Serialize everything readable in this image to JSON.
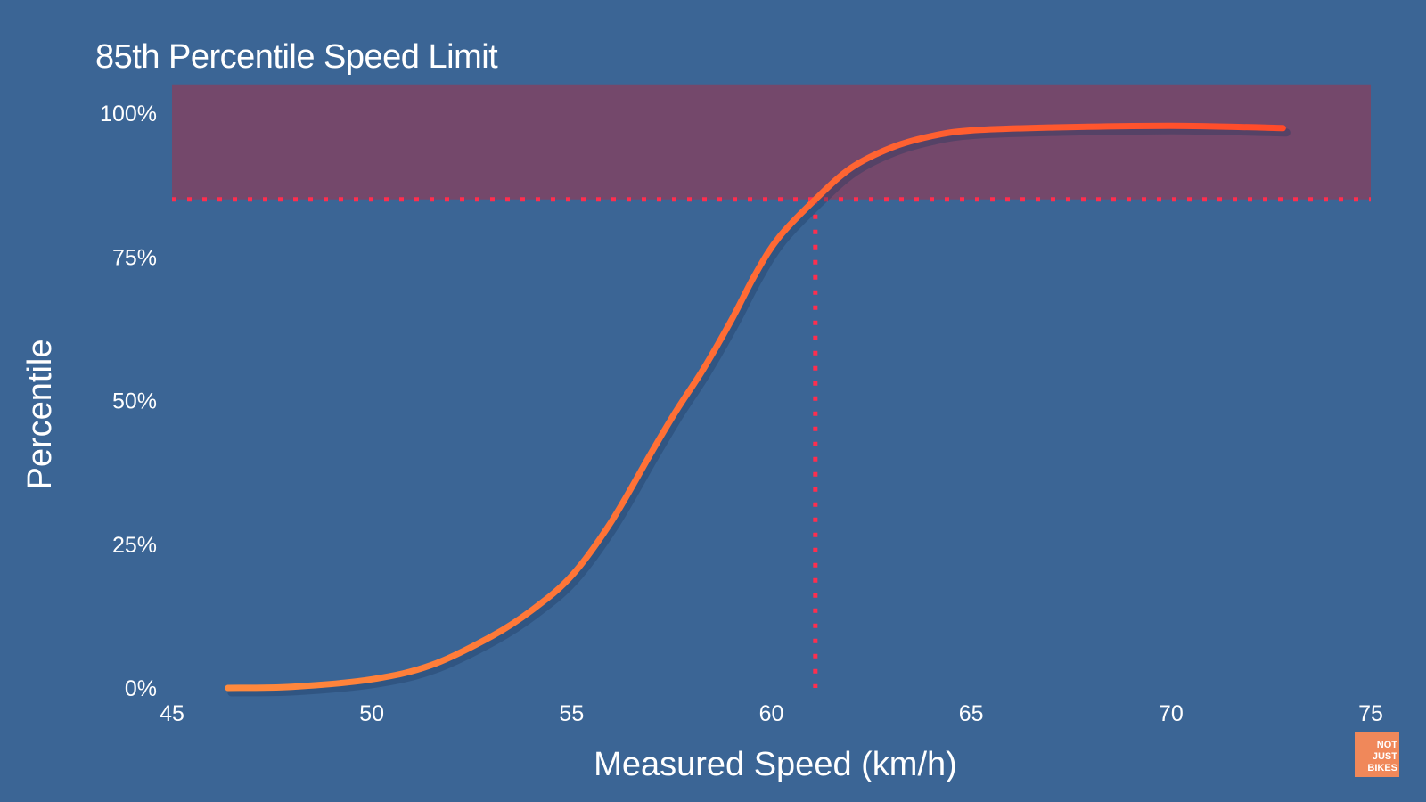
{
  "chart_data": {
    "type": "line",
    "title": "85th Percentile Speed Limit",
    "xlabel": "Measured Speed (km/h)",
    "ylabel": "Percentile",
    "xlim": [
      45,
      75
    ],
    "ylim": [
      0,
      100
    ],
    "x_ticks": [
      45,
      50,
      55,
      60,
      65,
      70,
      75
    ],
    "x_tick_labels": [
      "45",
      "50",
      "55",
      "60",
      "65",
      "70",
      "75"
    ],
    "y_ticks": [
      0,
      25,
      50,
      75,
      100
    ],
    "y_tick_labels": [
      "0%",
      "25%",
      "50%",
      "75%",
      "100%"
    ],
    "grid": false,
    "series": [
      {
        "x": [
          46.4,
          48,
          50,
          51.5,
          53,
          54,
          55,
          56,
          57,
          57.6,
          58.3,
          59,
          59.6,
          60.2,
          61.1,
          62,
          63,
          64,
          65,
          67,
          70,
          72.8
        ],
        "y": [
          0,
          0.2,
          1.5,
          4,
          9,
          13.5,
          19.5,
          29,
          41,
          48,
          55.5,
          64,
          72,
          78.5,
          85,
          90.5,
          94,
          96,
          97,
          97.5,
          97.8,
          97.4
        ],
        "color": "#ff6b2f"
      }
    ],
    "annotations": {
      "threshold_percentile": 85,
      "threshold_speed": 61.1,
      "shaded_band": [
        85,
        105
      ],
      "band_color": "#8a3d5c",
      "dotted_line_color": "#ff2e4e"
    }
  },
  "logo": {
    "lines": [
      "NOT",
      "JUST",
      "BIKES"
    ],
    "color": "#f0885a"
  }
}
